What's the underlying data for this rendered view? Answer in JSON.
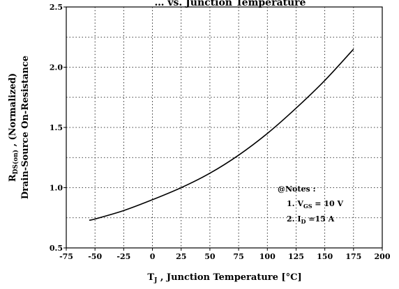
{
  "chart_data": {
    "type": "line",
    "title_partial": "… vs. Junction Temperature",
    "xlabel": {
      "symbol": "T",
      "sub": "J",
      "text": " ,  Junction Temperature  [",
      "unit": "°C",
      "close": "]"
    },
    "ylabel": {
      "line1_symbol": "R",
      "line1_sub": "DS(on)",
      "line1_text": " ,  (Normalized)",
      "line2": "Drain-Source On-Resistance"
    },
    "xlim": [
      -75,
      200
    ],
    "ylim": [
      0.5,
      2.5
    ],
    "x_ticks": [
      "-75",
      "-50",
      "-25",
      "0",
      "25",
      "50",
      "75",
      "100",
      "125",
      "150",
      "175",
      "200"
    ],
    "y_ticks": [
      "0.5",
      "1.0",
      "1.5",
      "2.0",
      "2.5"
    ],
    "grid": true,
    "series": [
      {
        "x": [
          -55,
          -50,
          -25,
          0,
          25,
          50,
          75,
          100,
          125,
          150,
          175
        ],
        "y": [
          0.73,
          0.74,
          0.81,
          0.9,
          1.0,
          1.12,
          1.27,
          1.45,
          1.66,
          1.89,
          2.15
        ]
      }
    ],
    "notes": {
      "header": "@Notes :",
      "line1_prefix": "1. V",
      "line1_sub": "GS",
      "line1_text": " = 10 V",
      "line2_prefix": "2. I",
      "line2_sub": "D",
      "line2_text": " =15 A"
    }
  }
}
